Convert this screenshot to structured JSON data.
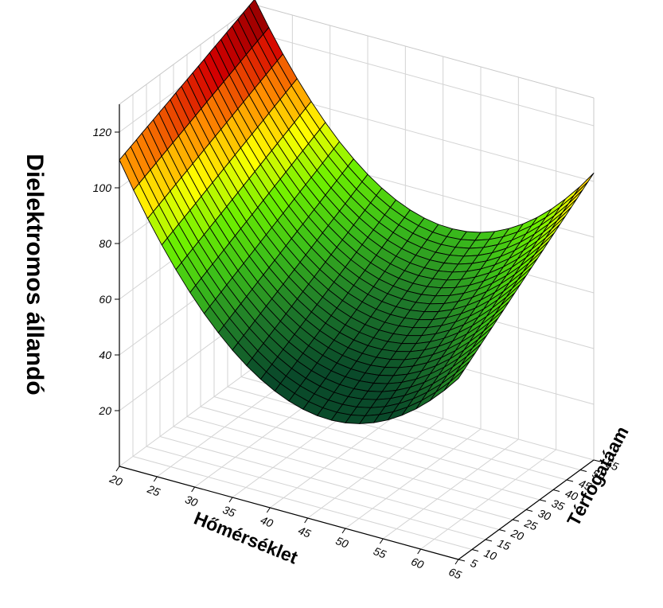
{
  "chart_data": {
    "type": "surface3d",
    "title": "",
    "xlabel": "Hőmérséklet",
    "ylabel": "Térfogatáam",
    "zlabel": "Dielektromos állandó",
    "x_ticks": [
      "20",
      "25",
      "30",
      "35",
      "40",
      "45",
      "50",
      "55",
      "60",
      "65"
    ],
    "y_ticks": [
      "5",
      "10",
      "15",
      "20",
      "25",
      "30",
      "35",
      "40",
      "45",
      "50",
      "55"
    ],
    "z_ticks": [
      "20",
      "40",
      "60",
      "80",
      "100",
      "120"
    ],
    "xlim": [
      20,
      65
    ],
    "ylim": [
      5,
      55
    ],
    "zlim": [
      0,
      130
    ],
    "grid": true,
    "colormap": [
      "#0a4a2a",
      "#1f7a2a",
      "#3cbf1a",
      "#6ef000",
      "#ffff00",
      "#ff8c00",
      "#d40000",
      "#7a0000"
    ],
    "surface_corners": [
      {
        "x": 20,
        "y": 5,
        "z": 110
      },
      {
        "x": 20,
        "y": 55,
        "z": 132
      },
      {
        "x": 65,
        "y": 5,
        "z": 65
      },
      {
        "x": 65,
        "y": 55,
        "z": 103
      }
    ],
    "minimum": {
      "x": 51,
      "y": 15,
      "z": 45
    }
  }
}
